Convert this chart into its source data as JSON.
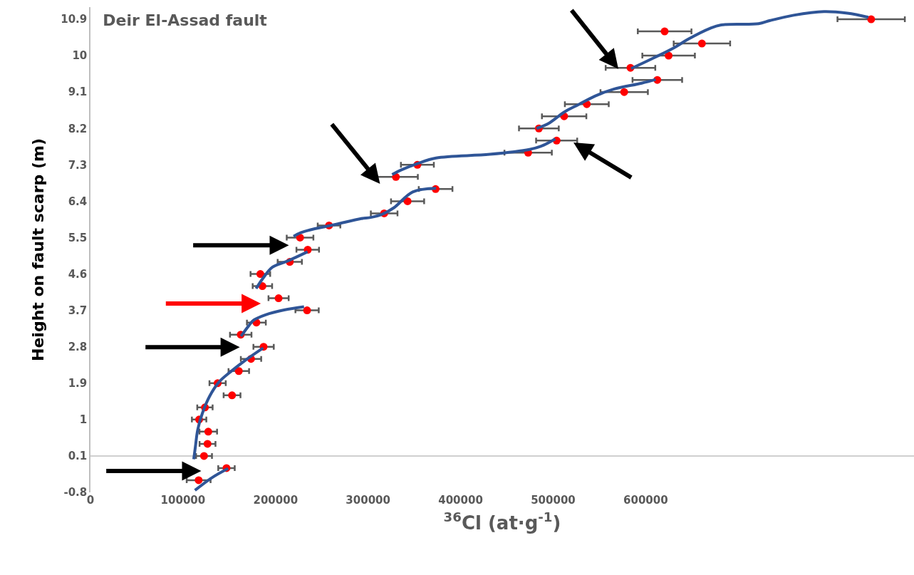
{
  "chart_data": {
    "type": "scatter",
    "title": "Deir El-Assad fault",
    "xlabel": "$^{36}$Cl (at·g$^{-1}$)",
    "ylabel": "Height on fault scarp (m)",
    "xlim": [
      0,
      890000
    ],
    "xticks": [
      0,
      100000,
      200000,
      300000,
      400000,
      500000,
      600000
    ],
    "ylim": [
      -0.8,
      11.2
    ],
    "yticks": [
      -0.8,
      0.1,
      1,
      1.9,
      2.8,
      3.7,
      4.6,
      5.5,
      6.4,
      7.3,
      8.2,
      9.1,
      10,
      10.9
    ],
    "grid": false,
    "ref_lines": [
      {
        "axis": "y",
        "value": 0.1,
        "color": "#bfbfbf"
      }
    ],
    "series": [
      {
        "color": "#ff0000",
        "marker": "circle",
        "x": [
          116900,
          147000,
          122700,
          126500,
          127300,
          117400,
          123700,
          153000,
          137400,
          160300,
          173500,
          187100,
          162400,
          179300,
          234100,
          203300,
          185800,
          183600,
          215400,
          234800,
          226500,
          257800,
          317400,
          342700,
          373000,
          330100,
          353300,
          473000,
          503800,
          484600,
          511900,
          536400,
          576800,
          612600,
          583600,
          624800,
          660800,
          620500,
          843700
        ],
        "values": [
          -0.5,
          -0.2,
          0.1,
          0.4,
          0.7,
          1.0,
          1.3,
          1.6,
          1.9,
          2.2,
          2.5,
          2.8,
          3.1,
          3.4,
          3.7,
          4.0,
          4.3,
          4.6,
          4.9,
          5.2,
          5.5,
          5.8,
          6.1,
          6.4,
          6.7,
          7.0,
          7.3,
          7.6,
          7.9,
          8.2,
          8.5,
          8.8,
          9.1,
          9.4,
          9.7,
          10.0,
          10.3,
          10.6,
          10.9
        ],
        "xerrors": [
          12900,
          8900,
          8600,
          8600,
          9500,
          7800,
          8300,
          9100,
          8800,
          11100,
          11000,
          11000,
          11600,
          10200,
          12600,
          10900,
          10500,
          10600,
          13100,
          12200,
          14400,
          12200,
          14400,
          17900,
          18200,
          23700,
          17800,
          25600,
          22200,
          21500,
          24000,
          23700,
          25600,
          26800,
          26800,
          28400,
          30500,
          29000,
          36400
        ]
      },
      {
        "type": "line",
        "color": "#2f5597",
        "line_style": "solid",
        "x": [
          112900,
          131100,
          148700
        ],
        "values": [
          -0.75,
          -0.44,
          -0.21
        ]
      },
      {
        "type": "line",
        "color": "#2f5597",
        "line_style": "solid",
        "x": [
          111600,
          113400,
          115900,
          121000,
          128600,
          138600,
          151300,
          166400,
          186600
        ],
        "values": [
          0.02,
          0.33,
          0.75,
          1.16,
          1.57,
          1.92,
          2.18,
          2.45,
          2.77
        ]
      },
      {
        "type": "line",
        "color": "#2f5597",
        "line_style": "solid",
        "x": [
          162700,
          171400,
          176500,
          189200,
          209300,
          230800
        ],
        "values": [
          3.06,
          3.33,
          3.46,
          3.59,
          3.71,
          3.79
        ]
      },
      {
        "type": "line",
        "color": "#2f5597",
        "line_style": "solid",
        "x": [
          179000,
          186600,
          196700,
          211900,
          234600
        ],
        "values": [
          4.24,
          4.5,
          4.77,
          4.91,
          5.15
        ]
      },
      {
        "type": "line",
        "color": "#2f5597",
        "line_style": "solid",
        "x": [
          219500,
          227100,
          237100,
          257400,
          267400,
          292700,
          302800,
          315400,
          328000,
          348300,
          373500
        ],
        "values": [
          5.53,
          5.62,
          5.69,
          5.79,
          5.84,
          5.97,
          6.0,
          6.08,
          6.24,
          6.63,
          6.72
        ]
      },
      {
        "type": "line",
        "color": "#2f5597",
        "line_style": "solid",
        "x": [
          326000,
          335600,
          353300,
          373500,
          431600,
          474500,
          487100,
          502300
        ],
        "values": [
          7.06,
          7.17,
          7.33,
          7.47,
          7.56,
          7.68,
          7.76,
          7.94
        ]
      },
      {
        "type": "line",
        "color": "#2f5597",
        "line_style": "solid",
        "x": [
          482100,
          494700,
          512400,
          527500,
          545200,
          565400,
          595700,
          610800
        ],
        "values": [
          8.2,
          8.32,
          8.61,
          8.79,
          9.0,
          9.17,
          9.32,
          9.41
        ]
      },
      {
        "type": "line",
        "color": "#2f5597",
        "line_style": "solid",
        "x": [
          584300,
          608300,
          631100,
          646200,
          669000,
          681600,
          722000,
          734600,
          759900,
          792700,
          818000,
          840700
        ],
        "values": [
          9.68,
          9.94,
          10.2,
          10.41,
          10.67,
          10.76,
          10.79,
          10.87,
          11.0,
          11.09,
          11.05,
          10.95
        ]
      }
    ]
  }
}
